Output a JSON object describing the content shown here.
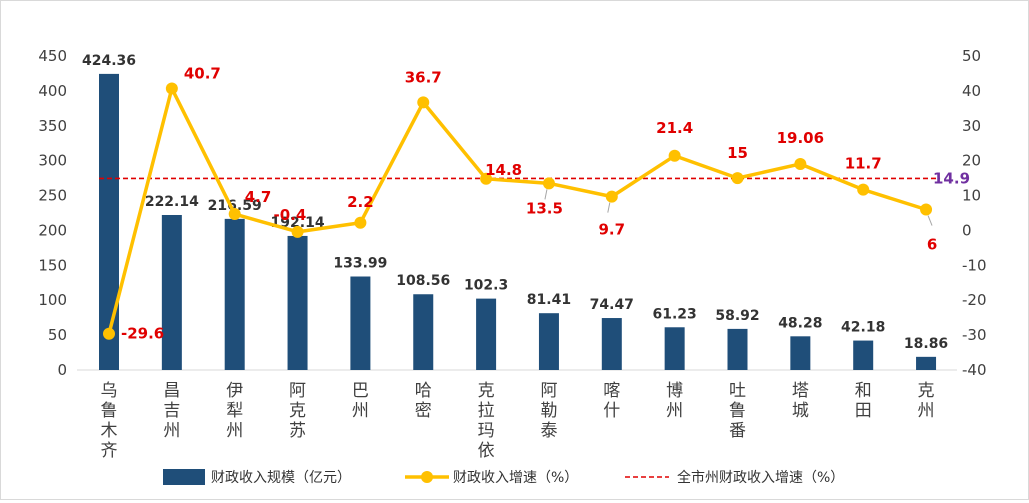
{
  "chart_data": {
    "type": "bar",
    "categories": [
      "乌鲁木齐",
      "昌吉州",
      "伊犁州",
      "阿克苏",
      "巴州",
      "哈密",
      "克拉玛依",
      "阿勒泰",
      "喀什",
      "博州",
      "吐鲁番",
      "塔城",
      "和田",
      "克州"
    ],
    "series": [
      {
        "name": "财政收入规模（亿元）",
        "type": "bar",
        "axis": "left",
        "color": "#1f4e79",
        "values": [
          424.36,
          222.14,
          216.59,
          192.14,
          133.99,
          108.56,
          102.3,
          81.41,
          74.47,
          61.23,
          58.92,
          48.28,
          42.18,
          18.86
        ],
        "labels": [
          "424.36",
          "222.14",
          "216.59",
          "192.14",
          "133.99",
          "108.56",
          "102.3",
          "81.41",
          "74.47",
          "61.23",
          "58.92",
          "48.28",
          "42.18",
          "18.86"
        ]
      },
      {
        "name": "财政收入增速（%）",
        "type": "line",
        "axis": "right",
        "color": "#ffc000",
        "values": [
          -29.6,
          40.7,
          4.7,
          -0.4,
          2.2,
          36.7,
          14.8,
          13.5,
          9.7,
          21.4,
          15,
          19.06,
          11.7,
          6
        ],
        "labels": [
          "-29.6",
          "40.7",
          "4.7",
          "-0.4",
          "2.2",
          "36.7",
          "14.8",
          "13.5",
          "9.7",
          "21.4",
          "15",
          "19.06",
          "11.7",
          "6"
        ]
      },
      {
        "name": "全市州财政收入增速（%）",
        "type": "reference-line",
        "axis": "right",
        "color": "#e00000",
        "value": 14.9,
        "label": "14.9"
      }
    ],
    "y_left": {
      "range": [
        0,
        450
      ],
      "ticks": [
        "0",
        "50",
        "100",
        "150",
        "200",
        "250",
        "300",
        "350",
        "400",
        "450"
      ]
    },
    "y_right": {
      "range": [
        -40,
        50
      ],
      "ticks": [
        "-40",
        "-30",
        "-20",
        "-10",
        "0",
        "10",
        "20",
        "30",
        "40",
        "50"
      ]
    },
    "grid": false,
    "legend": "bottom",
    "title": "",
    "xlabel": "",
    "ylabel": ""
  },
  "colors": {
    "bar": "#1f4e79",
    "line": "#ffc000",
    "reference": "#e00000",
    "line_label": "#e00000",
    "reference_label": "#7030a0",
    "axis_text": "#404040"
  }
}
